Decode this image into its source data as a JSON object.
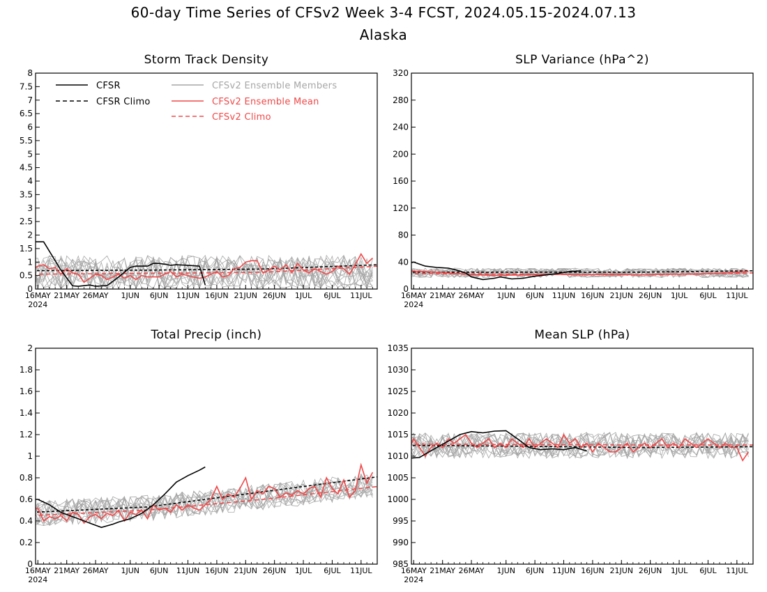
{
  "figure": {
    "title": "60-day Time Series of CFSv2 Week 3-4 FCST, 2024.05.15-2024.07.13",
    "subtitle": "Alaska"
  },
  "legend": {
    "cfsr": "CFSR",
    "cfsr_climo": "CFSR Climo",
    "members": "CFSv2 Ensemble Members",
    "ens_mean": "CFSv2 Ensemble Mean",
    "cfsv2_climo": "CFSv2 Climo"
  },
  "colors": {
    "cfsr": "#000000",
    "members": "#a6a6a6",
    "ens_mean": "#f04848"
  },
  "x_axis": {
    "day_min": 0.6,
    "day_max": 59.8,
    "ticks": [
      {
        "day": 1,
        "label": "16MAY",
        "sub": "2024"
      },
      {
        "day": 6,
        "label": "21MAY"
      },
      {
        "day": 11,
        "label": "26MAY"
      },
      {
        "day": 17,
        "label": "1JUN"
      },
      {
        "day": 22,
        "label": "6JUN"
      },
      {
        "day": 27,
        "label": "11JUN"
      },
      {
        "day": 32,
        "label": "16JUN"
      },
      {
        "day": 37,
        "label": "21JUN"
      },
      {
        "day": 42,
        "label": "26JUN"
      },
      {
        "day": 47,
        "label": "1JUL"
      },
      {
        "day": 52,
        "label": "6JUL"
      },
      {
        "day": 57,
        "label": "11JUL"
      }
    ]
  },
  "chart_data": [
    {
      "id": "storm",
      "type": "line",
      "title": "Storm Track Density",
      "ylim": [
        0,
        8
      ],
      "yticks": [
        "0",
        "0.5",
        "1",
        "1.5",
        "2",
        "2.5",
        "3",
        "3.5",
        "4",
        "4.5",
        "5",
        "5.5",
        "6",
        "6.5",
        "7",
        "7.5",
        "8"
      ],
      "member_base": 0.6,
      "member_spread": 0.65,
      "member_min": 0.0,
      "cfsr": {
        "x": [
          0,
          2,
          5,
          7,
          8,
          10,
          11,
          13,
          15,
          17,
          18,
          20,
          21,
          22,
          23,
          24,
          25,
          27,
          29,
          30
        ],
        "y": [
          1.75,
          1.75,
          0.7,
          0.12,
          0.1,
          0.15,
          0.1,
          0.13,
          0.45,
          0.8,
          0.85,
          0.85,
          0.95,
          0.95,
          0.92,
          0.88,
          0.9,
          0.88,
          0.85,
          0.15
        ]
      },
      "cfsr_climo": {
        "x": [
          0,
          20,
          40,
          50,
          60
        ],
        "y": [
          0.68,
          0.7,
          0.74,
          0.82,
          0.9
        ]
      },
      "ens_mean": {
        "x": [
          0,
          1,
          2,
          3,
          4,
          5,
          6,
          7,
          8,
          9,
          10,
          11,
          12,
          13,
          14,
          15,
          16,
          17,
          18,
          19,
          20,
          21,
          22,
          23,
          24,
          25,
          26,
          27,
          28,
          29,
          30,
          31,
          32,
          33,
          34,
          35,
          36,
          37,
          38,
          39,
          40,
          41,
          42,
          43,
          44,
          45,
          46,
          47,
          48,
          49,
          50,
          51,
          52,
          53,
          54,
          55,
          56,
          57,
          58,
          59
        ],
        "y": [
          0.7,
          0.85,
          0.9,
          0.75,
          0.8,
          0.55,
          0.75,
          0.6,
          0.55,
          0.25,
          0.4,
          0.55,
          0.5,
          0.35,
          0.45,
          0.55,
          0.4,
          0.5,
          0.35,
          0.5,
          0.45,
          0.45,
          0.45,
          0.55,
          0.65,
          0.45,
          0.55,
          0.5,
          0.45,
          0.4,
          0.45,
          0.55,
          0.65,
          0.45,
          0.5,
          0.75,
          0.8,
          1.0,
          1.05,
          1.05,
          0.6,
          0.7,
          0.85,
          0.7,
          0.9,
          0.6,
          0.95,
          0.7,
          0.6,
          0.75,
          0.65,
          0.55,
          0.65,
          0.85,
          0.75,
          0.55,
          0.9,
          1.3,
          0.95,
          1.15
        ]
      },
      "cfsv2_climo": {
        "x": [
          0,
          20,
          40,
          60
        ],
        "y": [
          0.55,
          0.58,
          0.62,
          0.85
        ]
      }
    },
    {
      "id": "slpvar",
      "type": "line",
      "title": "SLP Variance (hPa^2)",
      "ylim": [
        0,
        320
      ],
      "yticks": [
        "0",
        "40",
        "80",
        "120",
        "160",
        "200",
        "240",
        "280",
        "320"
      ],
      "member_base": 24,
      "member_spread": 7,
      "member_min": 5,
      "cfsr": {
        "x": [
          0,
          1,
          2,
          3,
          5,
          7,
          8,
          10,
          11,
          13,
          15,
          16,
          18,
          20,
          22,
          24,
          26,
          28,
          30
        ],
        "y": [
          38,
          40,
          37,
          34,
          32,
          31,
          29,
          24,
          18,
          14,
          16,
          18,
          15,
          16,
          19,
          21,
          23,
          26,
          27
        ]
      },
      "cfsr_climo": {
        "x": [
          0,
          20,
          40,
          60
        ],
        "y": [
          25,
          25,
          25,
          27
        ]
      },
      "ens_mean": {
        "x": [
          0,
          5,
          10,
          15,
          20,
          25,
          30,
          35,
          40,
          45,
          50,
          55,
          59
        ],
        "y": [
          27,
          25,
          22,
          20,
          21,
          22,
          21,
          22,
          21,
          22,
          22,
          24,
          26
        ]
      },
      "cfsv2_climo": {
        "x": [
          0,
          20,
          40,
          60
        ],
        "y": [
          23,
          22,
          21,
          24
        ]
      }
    },
    {
      "id": "precip",
      "type": "line",
      "title": "Total Precip (inch)",
      "ylim": [
        0,
        2
      ],
      "yticks": [
        "0",
        "0.2",
        "0.4",
        "0.6",
        "0.8",
        "1",
        "1.2",
        "1.4",
        "1.6",
        "1.8",
        "2"
      ],
      "member_base": "climo",
      "member_spread": 0.12,
      "member_min": 0.15,
      "cfsr": {
        "x": [
          0,
          1,
          3,
          5,
          8,
          10,
          12,
          14,
          15,
          17,
          19,
          21,
          23,
          25,
          27,
          29,
          30
        ],
        "y": [
          0.6,
          0.6,
          0.55,
          0.48,
          0.42,
          0.38,
          0.34,
          0.37,
          0.39,
          0.42,
          0.47,
          0.55,
          0.65,
          0.76,
          0.82,
          0.87,
          0.9
        ]
      },
      "cfsr_climo": {
        "x": [
          0,
          20,
          40,
          60
        ],
        "y": [
          0.48,
          0.53,
          0.67,
          0.81
        ]
      },
      "ens_mean": {
        "x": [
          0,
          1,
          2,
          3,
          4,
          5,
          6,
          7,
          8,
          9,
          10,
          11,
          12,
          13,
          14,
          15,
          16,
          17,
          18,
          19,
          20,
          21,
          22,
          23,
          24,
          25,
          26,
          27,
          28,
          29,
          30,
          31,
          32,
          33,
          34,
          35,
          36,
          37,
          38,
          39,
          40,
          41,
          42,
          43,
          44,
          45,
          46,
          47,
          48,
          49,
          50,
          51,
          52,
          53,
          54,
          55,
          56,
          57,
          58,
          59
        ],
        "y": [
          0.5,
          0.52,
          0.4,
          0.44,
          0.42,
          0.45,
          0.4,
          0.48,
          0.46,
          0.38,
          0.44,
          0.46,
          0.42,
          0.47,
          0.45,
          0.5,
          0.4,
          0.48,
          0.46,
          0.5,
          0.42,
          0.55,
          0.5,
          0.52,
          0.48,
          0.55,
          0.5,
          0.55,
          0.52,
          0.5,
          0.55,
          0.6,
          0.72,
          0.6,
          0.65,
          0.62,
          0.7,
          0.8,
          0.6,
          0.68,
          0.65,
          0.72,
          0.7,
          0.62,
          0.66,
          0.64,
          0.68,
          0.65,
          0.7,
          0.72,
          0.62,
          0.8,
          0.7,
          0.65,
          0.78,
          0.62,
          0.68,
          0.92,
          0.75,
          0.85
        ]
      },
      "cfsv2_climo": {
        "x": [
          0,
          20,
          40,
          60
        ],
        "y": [
          0.45,
          0.5,
          0.6,
          0.72
        ]
      }
    },
    {
      "id": "meanslp",
      "type": "line",
      "title": "Mean SLP (hPa)",
      "ylim": [
        985,
        1035
      ],
      "yticks": [
        "985",
        "990",
        "995",
        "1000",
        "1005",
        "1010",
        "1015",
        "1020",
        "1025",
        "1030",
        "1035"
      ],
      "member_base": 1012.5,
      "member_spread": 3,
      "member_min": 1000,
      "cfsr": {
        "x": [
          0,
          2,
          3,
          5,
          7,
          9,
          11,
          13,
          15,
          17,
          19,
          21,
          23,
          25,
          27,
          29,
          31
        ],
        "y": [
          1009.5,
          1009.7,
          1010.5,
          1012,
          1013.5,
          1015,
          1015.7,
          1015.4,
          1015.8,
          1015.9,
          1014,
          1012,
          1011.5,
          1011.7,
          1011.5,
          1012,
          1011.2
        ]
      },
      "cfsr_climo": {
        "x": [
          0,
          20,
          40,
          60
        ],
        "y": [
          1012.5,
          1012.3,
          1012,
          1012.2
        ]
      },
      "ens_mean": {
        "x": [
          0,
          1,
          2,
          3,
          4,
          5,
          6,
          7,
          8,
          9,
          10,
          11,
          12,
          13,
          14,
          15,
          16,
          17,
          18,
          19,
          20,
          21,
          22,
          23,
          24,
          25,
          26,
          27,
          28,
          29,
          30,
          31,
          32,
          33,
          34,
          35,
          36,
          37,
          38,
          39,
          40,
          41,
          42,
          43,
          44,
          45,
          46,
          47,
          48,
          49,
          50,
          51,
          52,
          53,
          54,
          55,
          56,
          57,
          58,
          59
        ],
        "y": [
          1011,
          1014,
          1012,
          1010,
          1012,
          1013,
          1012,
          1014,
          1013,
          1014,
          1015,
          1013,
          1012,
          1013,
          1014,
          1012,
          1013,
          1012,
          1014,
          1013,
          1012,
          1014,
          1012,
          1013,
          1014,
          1013,
          1012,
          1015,
          1013,
          1014,
          1012,
          1013,
          1011,
          1013,
          1012,
          1011,
          1011,
          1012,
          1013,
          1011,
          1012,
          1013,
          1012,
          1013,
          1014,
          1012,
          1013,
          1012,
          1014,
          1013,
          1012,
          1013,
          1014,
          1013,
          1012,
          1013,
          1012,
          1012,
          1009,
          1011
        ]
      },
      "cfsv2_climo": {
        "x": [
          0,
          20,
          40,
          60
        ],
        "y": [
          1012.8,
          1012.7,
          1012.6,
          1012.6
        ]
      }
    }
  ]
}
